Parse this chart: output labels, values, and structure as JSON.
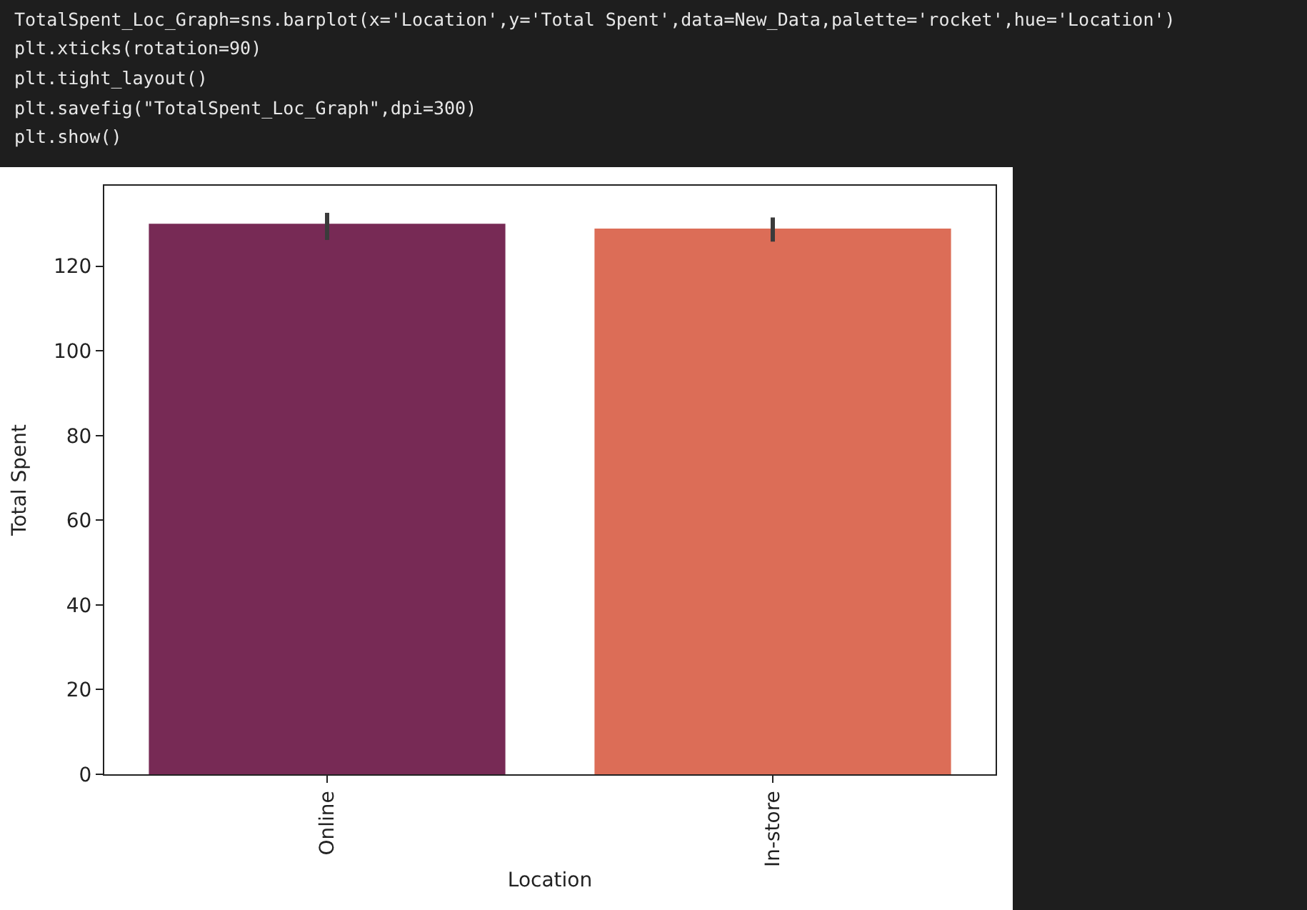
{
  "chart_data": {
    "type": "bar",
    "categories": [
      "Online",
      "In-store"
    ],
    "values": [
      130.0,
      128.9
    ],
    "colors": [
      "#772a55",
      "#dc6d57"
    ],
    "errors": [
      [
        126.2,
        132.6
      ],
      [
        125.8,
        131.5
      ]
    ],
    "xlabel": "Location",
    "ylabel": "Total Spent",
    "ylim": [
      0,
      139
    ],
    "yticks": [
      0,
      20,
      40,
      60,
      80,
      100,
      120
    ],
    "annotations": [
      "TotalSpent_Loc_Graph=sns.barplot(x='Location',y='Total Spent',data=New_Data,palette='rocket',hue='Location')",
      "plt.xticks(rotation=90)",
      "plt.tight_layout()",
      "plt.savefig(\"TotalSpent_Loc_Graph\",dpi=300)",
      "plt.show()"
    ]
  }
}
